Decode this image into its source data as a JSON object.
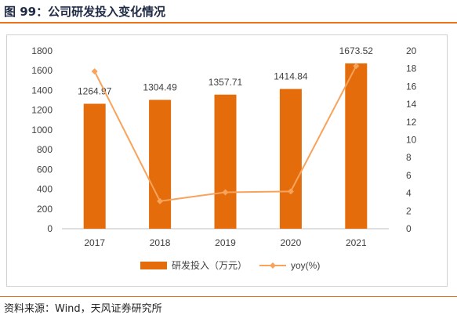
{
  "figure_title": "图 99：公司研发投入变化情况",
  "source_note": "资料来源：Wind，天风证券研究所",
  "colors": {
    "bar": "#e46c0a",
    "line": "#f7a35c",
    "accent_rule": "#e8731a",
    "axis_text": "#404040"
  },
  "chart_data": {
    "type": "bar",
    "categories": [
      "2017",
      "2018",
      "2019",
      "2020",
      "2021"
    ],
    "series": [
      {
        "name": "研发投入（万元）",
        "type": "bar",
        "axis": "left",
        "values": [
          1264.97,
          1304.49,
          1357.71,
          1414.84,
          1673.52
        ],
        "labels": [
          "1264.97",
          "1304.49",
          "1357.71",
          "1414.84",
          "1673.52"
        ]
      },
      {
        "name": "yoy(%)",
        "type": "line",
        "axis": "right",
        "values": [
          17.7,
          3.1,
          4.1,
          4.2,
          18.3
        ]
      }
    ],
    "y_left": {
      "min": 0,
      "max": 1800,
      "ticks": [
        "0",
        "200",
        "400",
        "600",
        "800",
        "1000",
        "1200",
        "1400",
        "1600",
        "1800"
      ]
    },
    "y_right": {
      "min": 0,
      "max": 20,
      "ticks": [
        "0",
        "2",
        "4",
        "6",
        "8",
        "10",
        "12",
        "14",
        "16",
        "18",
        "20"
      ]
    },
    "grid": false,
    "legend_position": "bottom"
  }
}
